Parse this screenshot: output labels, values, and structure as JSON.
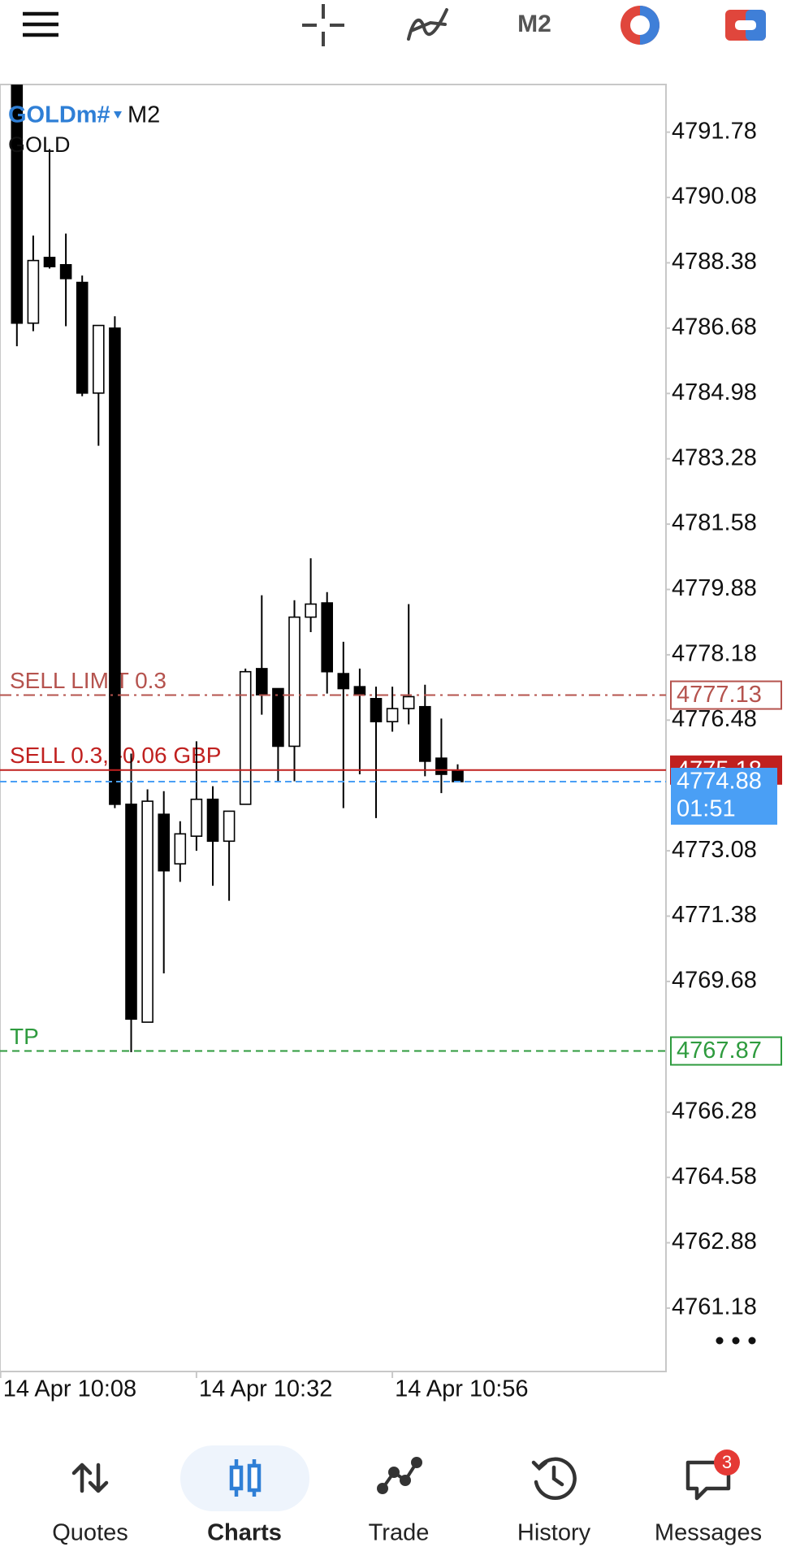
{
  "toolbar": {
    "timeframe": "M2"
  },
  "chart_data": {
    "type": "candlestick",
    "symbol": "GOLDm#",
    "timeframe": "M2",
    "description": "GOLD",
    "categories": [
      "14 Apr 10:08",
      null,
      null,
      null,
      null,
      null,
      null,
      null,
      null,
      null,
      null,
      null,
      "14 Apr 10:32",
      null,
      null,
      null,
      null,
      null,
      null,
      null,
      null,
      null,
      null,
      null,
      "14 Apr 10:56",
      null,
      null,
      null,
      null
    ],
    "open": [
      null,
      4793.0,
      4786.81,
      4788.52,
      4788.33,
      4787.87,
      4784.99,
      4786.68,
      4774.29,
      4768.62,
      4774.03,
      4772.74,
      4773.46,
      4774.42,
      4773.33,
      4774.29,
      4777.82,
      4777.3,
      4775.8,
      4779.16,
      4779.53,
      4777.69,
      4777.35,
      4777.04,
      4776.44,
      4776.78,
      4776.83,
      4775.49,
      4775.15
    ],
    "high": [
      null,
      4793.0,
      4789.09,
      4791.34,
      4789.14,
      4788.05,
      4786.75,
      4786.99,
      4775.61,
      4774.68,
      4774.63,
      4773.85,
      4775.93,
      4774.76,
      4774.11,
      4777.82,
      4779.73,
      4777.3,
      4779.6,
      4780.69,
      4779.81,
      4778.52,
      4777.82,
      4777.35,
      4777.35,
      4779.5,
      4777.4,
      4776.52,
      4775.33
    ],
    "low": [
      null,
      4786.21,
      4786.6,
      4788.23,
      4786.73,
      4784.91,
      4783.62,
      4774.19,
      4767.84,
      4768.62,
      4769.89,
      4772.27,
      4773.08,
      4772.17,
      4771.78,
      4774.29,
      4776.62,
      4774.89,
      4774.89,
      4778.77,
      4777.17,
      4774.19,
      4775.07,
      4773.93,
      4776.18,
      4776.37,
      4775.02,
      4774.58,
      4774.88
    ],
    "close": [
      null,
      4786.81,
      4788.44,
      4788.28,
      4787.97,
      4784.99,
      4786.75,
      4774.29,
      4768.7,
      4774.37,
      4772.56,
      4773.52,
      4774.42,
      4773.33,
      4774.11,
      4777.74,
      4777.14,
      4775.8,
      4779.16,
      4779.5,
      4777.74,
      4777.3,
      4777.14,
      4776.44,
      4776.78,
      4777.09,
      4775.41,
      4775.07,
      4774.88
    ],
    "up_color": "#ffffff",
    "down_color": "#000000",
    "ylim": [
      4759.53,
      4793.02
    ],
    "yticks": [
      4791.78,
      4790.08,
      4788.38,
      4786.68,
      4784.98,
      4783.28,
      4781.58,
      4779.88,
      4778.18,
      4776.48,
      4773.08,
      4771.38,
      4769.68,
      4766.28,
      4764.58,
      4762.88,
      4761.18
    ],
    "lines": [
      {
        "label": "SELL LIMIT 0.3",
        "value": 4777.13,
        "color": "#b5534e",
        "style": "dash-dot",
        "tag": "outline"
      },
      {
        "label": "SELL 0.3, -0.06 GBP",
        "value": 4775.18,
        "color": "#c0201f",
        "style": "solid",
        "tag": "filled"
      },
      {
        "label": "TP",
        "value": 4767.87,
        "color": "#2e9b3e",
        "style": "dashed",
        "tag": "outline"
      }
    ],
    "bid": {
      "value": 4774.88,
      "timer": "01:51",
      "color": "#4a9ff5"
    }
  },
  "nav": {
    "items": [
      "Quotes",
      "Charts",
      "Trade",
      "History",
      "Messages"
    ],
    "active": 1,
    "badge": 3
  }
}
